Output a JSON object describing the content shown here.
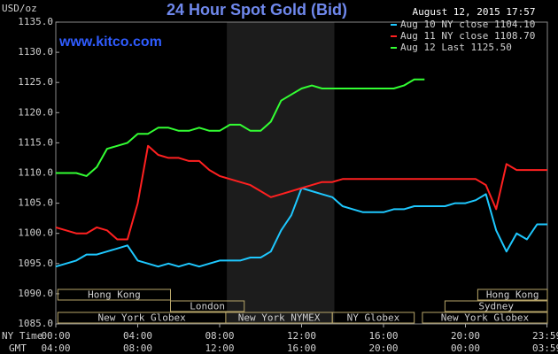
{
  "chart_data": {
    "type": "line",
    "title": "24 Hour Spot Gold (Bid)",
    "date": "August 12, 2015 17:57",
    "source": "www.kitco.com",
    "y_label": "USD/oz",
    "x_label": "NY Time",
    "x2_label": "GMT",
    "x": [
      0,
      0.5,
      1,
      1.5,
      2,
      2.5,
      3,
      3.5,
      4,
      4.5,
      5,
      5.5,
      6,
      6.5,
      7,
      7.5,
      8,
      8.5,
      9,
      9.5,
      10,
      10.5,
      11,
      11.5,
      12,
      12.5,
      13,
      13.5,
      14,
      14.5,
      15,
      15.5,
      16,
      16.5,
      17,
      17.5,
      18,
      18.5,
      19,
      19.5,
      20,
      20.5,
      21,
      21.5,
      22,
      22.5,
      23,
      23.5,
      24
    ],
    "series": [
      {
        "name": "Aug 10 NY close 1104.10",
        "color": "#1ec8ff",
        "values": [
          1094.5,
          1095,
          1095.5,
          1096.5,
          1096.5,
          1097,
          1097.5,
          1098,
          1095.5,
          1095,
          1094.5,
          1095,
          1094.5,
          1095,
          1094.5,
          1095,
          1095.5,
          1095.5,
          1095.5,
          1096,
          1096,
          1097,
          1100.5,
          1103,
          1107.5,
          1107,
          1106.5,
          1106,
          1104.5,
          1104,
          1103.5,
          1103.5,
          1103.5,
          1104,
          1104,
          1104.5,
          1104.5,
          1104.5,
          1104.5,
          1105,
          1105,
          1105.5,
          1106.5,
          1100.5,
          1097,
          1100,
          1099,
          1101.5,
          1101.5
        ]
      },
      {
        "name": "Aug 11 NY close 1108.70",
        "color": "#ff2020",
        "values": [
          1101,
          1100.5,
          1100,
          1100,
          1101,
          1100.5,
          1099,
          1099,
          1105,
          1114.5,
          1113,
          1112.5,
          1112.5,
          1112,
          1112,
          1110.5,
          1109.5,
          1109,
          1108.5,
          1108,
          1107,
          1106,
          1106.5,
          1107,
          1107.5,
          1108,
          1108.5,
          1108.5,
          1109,
          1109,
          1109,
          1109,
          1109,
          1109,
          1109,
          1109,
          1109,
          1109,
          1109,
          1109,
          1109,
          1109,
          1108,
          1104,
          1111.5,
          1110.5,
          1110.5,
          1110.5,
          1110.5
        ]
      },
      {
        "name": "Aug 12 Last 1125.50",
        "color": "#33ff33",
        "values": [
          1110,
          1110,
          1110,
          1109.5,
          1111,
          1114,
          1114.5,
          1115,
          1116.5,
          1116.5,
          1117.5,
          1117.5,
          1117,
          1117,
          1117.5,
          1117,
          1117,
          1118,
          1118,
          1117,
          1117,
          1118.5,
          1122,
          1123,
          1124,
          1124.5,
          1124,
          1124,
          1124,
          1124,
          1124,
          1124,
          1124,
          1124,
          1124.5,
          1125.5,
          1125.5,
          null,
          null,
          null,
          null,
          null,
          null,
          null,
          null,
          null,
          null,
          null,
          null
        ]
      }
    ],
    "xlim": [
      0,
      24
    ],
    "ylim": [
      1085,
      1135
    ],
    "xticks": [
      {
        "value": 0,
        "label": "00:00"
      },
      {
        "value": 4,
        "label": "04:00"
      },
      {
        "value": 8,
        "label": "08:00"
      },
      {
        "value": 12,
        "label": "12:00"
      },
      {
        "value": 16,
        "label": "16:00"
      },
      {
        "value": 20,
        "label": "20:00"
      },
      {
        "value": 23.98,
        "label": "23:59"
      }
    ],
    "x2ticks": [
      "04:00",
      "08:00",
      "12:00",
      "16:00",
      "20:00",
      "00:00",
      "03:59"
    ],
    "yticks": [
      {
        "value": 1085,
        "label": "1085.0"
      },
      {
        "value": 1090,
        "label": "1090.0"
      },
      {
        "value": 1095,
        "label": "1095.0"
      },
      {
        "value": 1100,
        "label": "1100.0"
      },
      {
        "value": 1105,
        "label": "1105.0"
      },
      {
        "value": 1110,
        "label": "1110.0"
      },
      {
        "value": 1115,
        "label": "1115.0"
      },
      {
        "value": 1120,
        "label": "1120.0"
      },
      {
        "value": 1125,
        "label": "1125.0"
      },
      {
        "value": 1130,
        "label": "1130.0"
      },
      {
        "value": 1135,
        "label": "1135.0"
      }
    ],
    "shaded_range": [
      8.35,
      13.6
    ],
    "sessions": [
      {
        "name": "Hong Kong",
        "row": 0,
        "start": 0.1,
        "end": 5.6
      },
      {
        "name": "Hong Kong",
        "row": 0,
        "start": 20.6,
        "end": 24
      },
      {
        "name": "London",
        "row": 1,
        "start": 5.6,
        "end": 9.2
      },
      {
        "name": "Sydney",
        "row": 1,
        "start": 19.0,
        "end": 24
      },
      {
        "name": "New York Globex",
        "row": 2,
        "start": 0.1,
        "end": 8.3
      },
      {
        "name": "New York NYMEX",
        "row": 2,
        "start": 8.3,
        "end": 13.5
      },
      {
        "name": "NY Globex",
        "row": 2,
        "start": 13.5,
        "end": 17.5
      },
      {
        "name": "New York Globex",
        "row": 2,
        "start": 17.9,
        "end": 24
      }
    ],
    "grid": false
  }
}
